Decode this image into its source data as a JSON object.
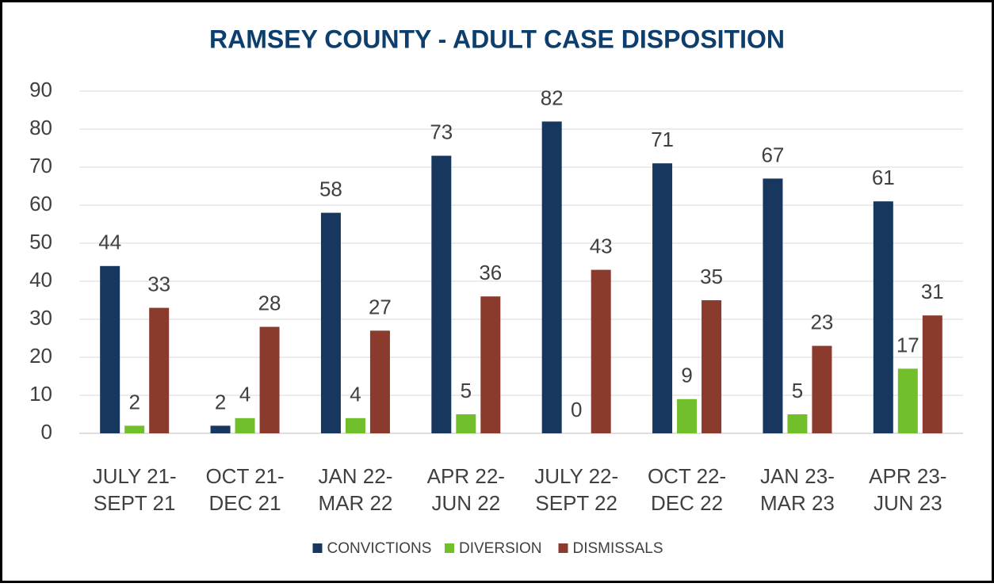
{
  "chart_data": {
    "type": "bar",
    "title": "RAMSEY COUNTY - ADULT CASE DISPOSITION",
    "categories": [
      "JULY 21-\nSEPT 21",
      "OCT 21-\nDEC 21",
      "JAN 22-\nMAR 22",
      "APR 22-\nJUN 22",
      "JULY 22-\nSEPT 22",
      "OCT 22-\nDEC 22",
      "JAN 23-\nMAR 23",
      "APR 23-\nJUN 23"
    ],
    "series": [
      {
        "name": "CONVICTIONS",
        "color": "#17375e",
        "values": [
          44,
          2,
          58,
          73,
          82,
          71,
          67,
          61
        ]
      },
      {
        "name": "DIVERSION",
        "color": "#72bf2c",
        "values": [
          2,
          4,
          4,
          5,
          0,
          9,
          5,
          17
        ]
      },
      {
        "name": "DISMISSALS",
        "color": "#8b3a2e",
        "values": [
          33,
          28,
          27,
          36,
          43,
          35,
          23,
          31
        ]
      }
    ],
    "ylim": [
      0,
      90
    ],
    "yticks": [
      0,
      10,
      20,
      30,
      40,
      50,
      60,
      70,
      80,
      90
    ],
    "grid": true,
    "legend": "bottom"
  }
}
